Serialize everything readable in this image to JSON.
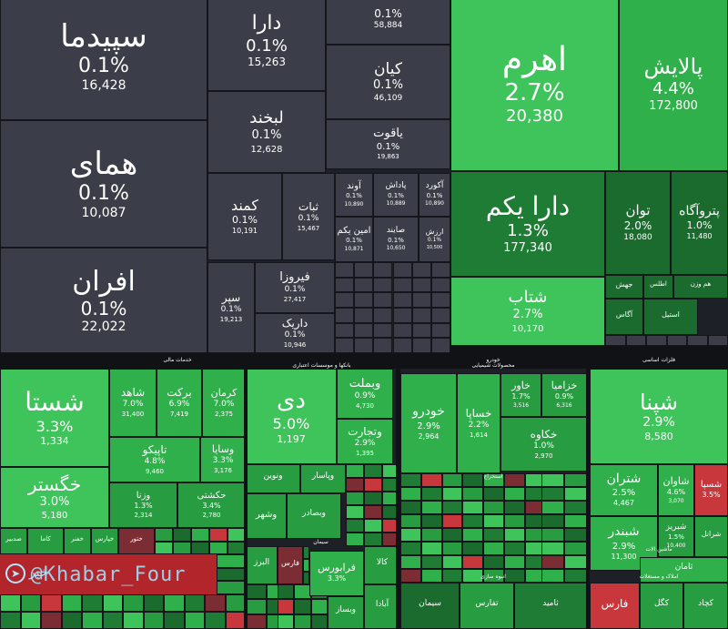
{
  "colors": {
    "flat": "#3b3e48",
    "light_green": "#3fc45b",
    "green": "#2fb04b",
    "mid_green": "#279c41",
    "dark_green": "#1f7c34",
    "deep_green": "#1b6a2e",
    "red": "#c7373b",
    "dark_red": "#7c2d33",
    "background": "#1d2026"
  },
  "sectors": [
    {
      "label": "خدمات مالی"
    },
    {
      "label": "بانکها و موسسات اعتباری"
    },
    {
      "label": "محصولات شیمیایی"
    },
    {
      "label": "خودرو"
    },
    {
      "label": "انبوه سازی"
    },
    {
      "label": "فلزات اساسی"
    },
    {
      "label": "ماشین آلات"
    },
    {
      "label": "املاک و مستغلات"
    },
    {
      "label": "سیمان"
    },
    {
      "label": "استخراج"
    }
  ],
  "tiles": [
    {
      "name": "سپیدما",
      "pct": "0.1%",
      "val": "16,428"
    },
    {
      "name": "دارا",
      "pct": "0.1%",
      "val": "15,263"
    },
    {
      "name": "",
      "pct": "0.1%",
      "val": "58,884"
    },
    {
      "name": "کیان",
      "pct": "0.1%",
      "val": "46,109"
    },
    {
      "name": "لبخند",
      "pct": "0.1%",
      "val": "12,628"
    },
    {
      "name": "یاقوت",
      "pct": "0.1%",
      "val": "19,863"
    },
    {
      "name": "اهرم",
      "pct": "2.7%",
      "val": "20,380"
    },
    {
      "name": "پالایش",
      "pct": "4.4%",
      "val": "172,800"
    },
    {
      "name": "همای",
      "pct": "0.1%",
      "val": "10,087"
    },
    {
      "name": "کمند",
      "pct": "0.1%",
      "val": "10,191"
    },
    {
      "name": "ثبات",
      "pct": "0.1%",
      "val": "15,467"
    },
    {
      "name": "آوند",
      "pct": "0.1%",
      "val": "10,890"
    },
    {
      "name": "پاداش",
      "pct": "0.1%",
      "val": "10,889"
    },
    {
      "name": "آکورد",
      "pct": "0.1%",
      "val": "10,890"
    },
    {
      "name": "امین یکم",
      "pct": "0.1%",
      "val": "10,871"
    },
    {
      "name": "صایند",
      "pct": "0.1%",
      "val": "10,650"
    },
    {
      "name": "ارزش",
      "pct": "0.1%",
      "val": "10,500"
    },
    {
      "name": "دارا یکم",
      "pct": "1.3%",
      "val": "177,340"
    },
    {
      "name": "توان",
      "pct": "2.0%",
      "val": "18,080"
    },
    {
      "name": "پتروآگاه",
      "pct": "1.0%",
      "val": "11,480"
    },
    {
      "name": "افران",
      "pct": "0.1%",
      "val": "22,022"
    },
    {
      "name": "فیروزا",
      "pct": "0.1%",
      "val": "27,417"
    },
    {
      "name": "سپر",
      "pct": "0.1%",
      "val": "19,213"
    },
    {
      "name": "داریک",
      "pct": "0.1%",
      "val": "10,946"
    },
    {
      "name": "شتاب",
      "pct": "2.7%",
      "val": "10,170"
    },
    {
      "name": "جهش",
      "pct": "",
      "val": ""
    },
    {
      "name": "اطلس",
      "pct": "",
      "val": ""
    },
    {
      "name": "هم وزن",
      "pct": "",
      "val": ""
    },
    {
      "name": "آگاس",
      "pct": "",
      "val": ""
    },
    {
      "name": "استیل",
      "pct": "",
      "val": ""
    },
    {
      "name": "شستا",
      "pct": "3.3%",
      "val": "1,334"
    },
    {
      "name": "شاهد",
      "pct": "7.0%",
      "val": "31,400"
    },
    {
      "name": "برکت",
      "pct": "6.9%",
      "val": "7,419"
    },
    {
      "name": "کرمان",
      "pct": "7.0%",
      "val": "2,375"
    },
    {
      "name": "تاپیکو",
      "pct": "4.8%",
      "val": "9,460"
    },
    {
      "name": "وسایا",
      "pct": "3.3%",
      "val": "3,176"
    },
    {
      "name": "وزنا",
      "pct": "1.3%",
      "val": "2,314"
    },
    {
      "name": "حکشتی",
      "pct": "3.4%",
      "val": "2,780"
    },
    {
      "name": "خگستر",
      "pct": "3.0%",
      "val": "5,180"
    },
    {
      "name": "دی",
      "pct": "5.0%",
      "val": "1,197"
    },
    {
      "name": "وبملت",
      "pct": "0.9%",
      "val": "4,730"
    },
    {
      "name": "وتجارت",
      "pct": "2.9%",
      "val": "1,395"
    },
    {
      "name": "ونوین",
      "pct": "",
      "val": ""
    },
    {
      "name": "وپاسار",
      "pct": "",
      "val": ""
    },
    {
      "name": "وبصادر",
      "pct": "",
      "val": ""
    },
    {
      "name": "وشهر",
      "pct": "",
      "val": ""
    },
    {
      "name": "خودرو",
      "pct": "2.9%",
      "val": "2,964"
    },
    {
      "name": "خساپا",
      "pct": "2.2%",
      "val": "1,614"
    },
    {
      "name": "خاور",
      "pct": "1.7%",
      "val": "3,516"
    },
    {
      "name": "خزامیا",
      "pct": "0.9%",
      "val": "6,316"
    },
    {
      "name": "خکاوه",
      "pct": "1.0%",
      "val": "2,970"
    },
    {
      "name": "شپنا",
      "pct": "2.9%",
      "val": "8,580"
    },
    {
      "name": "شتران",
      "pct": "2.5%",
      "val": "4,467"
    },
    {
      "name": "شاوان",
      "pct": "4.6%",
      "val": "3,070"
    },
    {
      "name": "شسپا",
      "pct": "3.5%",
      "val": ""
    },
    {
      "name": "شبندر",
      "pct": "2.9%",
      "val": "11,300"
    },
    {
      "name": "شبریز",
      "pct": "1.5%",
      "val": "10,400"
    },
    {
      "name": "شرانل",
      "pct": "",
      "val": ""
    },
    {
      "name": "فارس",
      "pct": "",
      "val": ""
    },
    {
      "name": "کگل",
      "pct": "",
      "val": ""
    },
    {
      "name": "کچاد",
      "pct": "",
      "val": ""
    },
    {
      "name": "ثامان",
      "pct": "",
      "val": ""
    },
    {
      "name": "البرز",
      "pct": "",
      "val": ""
    },
    {
      "name": "فارس",
      "pct": "",
      "val": ""
    },
    {
      "name": "کالا",
      "pct": "",
      "val": ""
    },
    {
      "name": "فرابورس",
      "pct": "3.3%",
      "val": ""
    },
    {
      "name": "وبساز",
      "pct": "",
      "val": ""
    },
    {
      "name": "آبادا",
      "pct": "",
      "val": ""
    },
    {
      "name": "سیمان",
      "pct": "",
      "val": ""
    },
    {
      "name": "تفارس",
      "pct": "",
      "val": ""
    },
    {
      "name": "ثامید",
      "pct": "",
      "val": ""
    },
    {
      "name": "صدبیر",
      "pct": "",
      "val": ""
    },
    {
      "name": "خپارس",
      "pct": "",
      "val": ""
    },
    {
      "name": "کاما",
      "pct": "",
      "val": ""
    },
    {
      "name": "ختور",
      "pct": "",
      "val": ""
    },
    {
      "name": "خفنر",
      "pct": "",
      "val": ""
    }
  ],
  "watermark": {
    "text": "@Khabar_Four",
    "mark": "خبر"
  }
}
